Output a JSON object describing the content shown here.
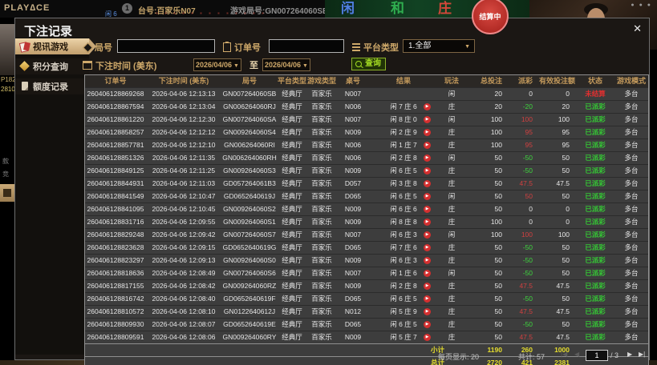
{
  "topbar": {
    "logo": "PLAY∆CE",
    "badge": "1",
    "table_label": "台号:百家乐N07",
    "round_label": "游戏局号:GN007264060SB",
    "zones": [
      "闲",
      "和",
      "庄"
    ],
    "settling": "结算中",
    "score_fragment": "闲 6"
  },
  "left_strip": {
    "fragments": [
      "P182",
      "2810",
      "款",
      "竞"
    ]
  },
  "modal": {
    "title": "下注记录",
    "close": "✕"
  },
  "sidebar": {
    "items": [
      {
        "label": "视讯游戏",
        "icon": "cards-icon",
        "active": true
      },
      {
        "label": "积分查询",
        "icon": "diamond-icon",
        "active": false
      },
      {
        "label": "额度记录",
        "icon": "document-icon",
        "active": false
      }
    ]
  },
  "filters": {
    "round_label": "局号",
    "order_label": "订单号",
    "platform_label": "平台类型",
    "platform_value": "1.全部",
    "time_label": "下注时间 (美东)",
    "date_from": "2026/04/06",
    "to_label": "至",
    "date_to": "2026/04/06",
    "search_label": "查询",
    "dropdown_arrow": "▼"
  },
  "table": {
    "headers": [
      "订单号",
      "下注时间 (美东)",
      "局号",
      "平台类型",
      "游戏类型",
      "桌号",
      "结果",
      "玩法",
      "总投注",
      "派彩",
      "有效投注额",
      "状态",
      "游戏模式"
    ],
    "numeric_columns": [
      8,
      9,
      10
    ],
    "rows": [
      [
        "260406128869268",
        "2026-04-06 12:13:13",
        "GN007264060SB",
        "经典厅",
        "百家乐",
        "N007",
        "",
        "闲",
        "20",
        "0",
        "0",
        "未结算",
        "多台"
      ],
      [
        "260406128867594",
        "2026-04-06 12:13:04",
        "GN006264060RJ",
        "经典厅",
        "百家乐",
        "N006",
        "闲 7 庄 6",
        "庄",
        "20",
        "-20",
        "20",
        "已派彩",
        "多台"
      ],
      [
        "260406128861220",
        "2026-04-06 12:12:30",
        "GN007264060SA",
        "经典厅",
        "百家乐",
        "N007",
        "闲 8 庄 0",
        "闲",
        "100",
        "100",
        "100",
        "已派彩",
        "多台"
      ],
      [
        "260406128858257",
        "2026-04-06 12:12:12",
        "GN009264060S4",
        "经典厅",
        "百家乐",
        "N009",
        "闲 2 庄 9",
        "庄",
        "100",
        "95",
        "95",
        "已派彩",
        "多台"
      ],
      [
        "260406128857781",
        "2026-04-06 12:12:10",
        "GN006264060RI",
        "经典厅",
        "百家乐",
        "N006",
        "闲 1 庄 7",
        "庄",
        "100",
        "95",
        "95",
        "已派彩",
        "多台"
      ],
      [
        "260406128851326",
        "2026-04-06 12:11:35",
        "GN006264060RH",
        "经典厅",
        "百家乐",
        "N006",
        "闲 2 庄 8",
        "闲",
        "50",
        "-50",
        "50",
        "已派彩",
        "多台"
      ],
      [
        "260406128849125",
        "2026-04-06 12:11:25",
        "GN009264060S3",
        "经典厅",
        "百家乐",
        "N009",
        "闲 6 庄 5",
        "庄",
        "50",
        "-50",
        "50",
        "已派彩",
        "多台"
      ],
      [
        "260406128844931",
        "2026-04-06 12:11:03",
        "GD057264061B3",
        "经典厅",
        "百家乐",
        "D057",
        "闲 3 庄 8",
        "庄",
        "50",
        "47.5",
        "47.5",
        "已派彩",
        "多台"
      ],
      [
        "260406128841549",
        "2026-04-06 12:10:47",
        "GD0652640619J",
        "经典厅",
        "百家乐",
        "D065",
        "闲 6 庄 5",
        "闲",
        "50",
        "50",
        "50",
        "已派彩",
        "多台"
      ],
      [
        "260406128841095",
        "2026-04-06 12:10:45",
        "GN009264060S2",
        "经典厅",
        "百家乐",
        "N009",
        "闲 6 庄 6",
        "庄",
        "50",
        "0",
        "0",
        "已派彩",
        "多台"
      ],
      [
        "260406128831716",
        "2026-04-06 12:09:55",
        "GN009264060S1",
        "经典厅",
        "百家乐",
        "N009",
        "闲 8 庄 8",
        "庄",
        "100",
        "0",
        "0",
        "已派彩",
        "多台"
      ],
      [
        "260406128829248",
        "2026-04-06 12:09:42",
        "GN007264060S7",
        "经典厅",
        "百家乐",
        "N007",
        "闲 6 庄 3",
        "闲",
        "100",
        "100",
        "100",
        "已派彩",
        "多台"
      ],
      [
        "260406128823628",
        "2026-04-06 12:09:15",
        "GD0652640619G",
        "经典厅",
        "百家乐",
        "D065",
        "闲 7 庄 6",
        "庄",
        "50",
        "-50",
        "50",
        "已派彩",
        "多台"
      ],
      [
        "260406128823297",
        "2026-04-06 12:09:13",
        "GN009264060S0",
        "经典厅",
        "百家乐",
        "N009",
        "闲 6 庄 3",
        "庄",
        "50",
        "-50",
        "50",
        "已派彩",
        "多台"
      ],
      [
        "260406128818636",
        "2026-04-06 12:08:49",
        "GN007264060S6",
        "经典厅",
        "百家乐",
        "N007",
        "闲 1 庄 6",
        "闲",
        "50",
        "-50",
        "50",
        "已派彩",
        "多台"
      ],
      [
        "260406128817155",
        "2026-04-06 12:08:42",
        "GN009264060RZ",
        "经典厅",
        "百家乐",
        "N009",
        "闲 2 庄 8",
        "庄",
        "50",
        "47.5",
        "47.5",
        "已派彩",
        "多台"
      ],
      [
        "260406128816742",
        "2026-04-06 12:08:40",
        "GD0652640619F",
        "经典厅",
        "百家乐",
        "D065",
        "闲 6 庄 5",
        "庄",
        "50",
        "-50",
        "50",
        "已派彩",
        "多台"
      ],
      [
        "260406128810572",
        "2026-04-06 12:08:10",
        "GN0122640612J",
        "经典厅",
        "百家乐",
        "N012",
        "闲 5 庄 9",
        "庄",
        "50",
        "47.5",
        "47.5",
        "已派彩",
        "多台"
      ],
      [
        "260406128809930",
        "2026-04-06 12:08:07",
        "GD0652640619E",
        "经典厅",
        "百家乐",
        "D065",
        "闲 6 庄 5",
        "庄",
        "50",
        "-50",
        "50",
        "已派彩",
        "多台"
      ],
      [
        "260406128809591",
        "2026-04-06 12:08:06",
        "GN009264060RY",
        "经典厅",
        "百家乐",
        "N009",
        "闲 5 庄 7",
        "庄",
        "50",
        "47.5",
        "47.5",
        "已派彩",
        "多台"
      ]
    ],
    "subtotal": {
      "label": "小计",
      "total_bet": "1190",
      "payout": "260",
      "valid_bet": "1000"
    },
    "grand_total": {
      "label": "总计",
      "total_bet": "2720",
      "payout": "421",
      "valid_bet": "2381"
    },
    "status_colors": {
      "已派彩": "#35c535",
      "未结算": "#e03030"
    },
    "payout_colors": {
      "positive": "#d04040",
      "negative": "#3ed43e",
      "zero": "#e2e2e2"
    },
    "play_icon": "▶"
  },
  "pager": {
    "per_page": "每页显示: 20",
    "total_count": "共计: 57",
    "page": "1",
    "of": "/ 3",
    "first": "|◀",
    "prev": "◀",
    "next": "▶",
    "last": "▶|"
  }
}
